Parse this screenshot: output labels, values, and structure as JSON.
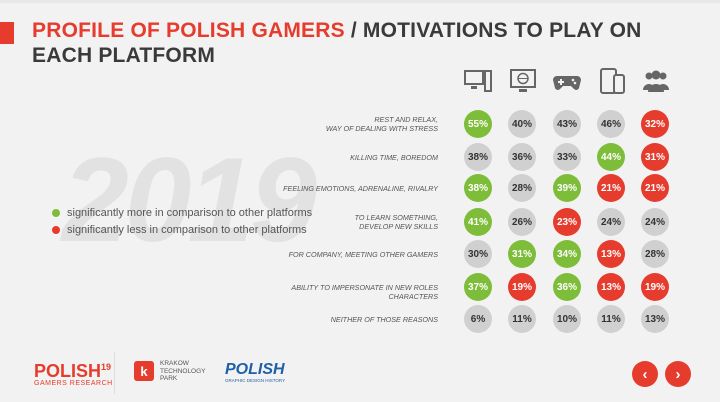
{
  "title": {
    "part1": "PROFILE OF POLISH GAMERS",
    "part2": " / MOTIVATIONS TO PLAY ON EACH PLATFORM"
  },
  "year_watermark": "2019",
  "legend": [
    {
      "text": "significantly more in comparison to other platforms",
      "color": "#7dbd3a"
    },
    {
      "text": "significantly less in comparison to other platforms",
      "color": "#e63c2e"
    }
  ],
  "platform_icons": [
    "desktop-pc-icon",
    "browser-globe-icon",
    "gamepad-console-icon",
    "mobile-tablet-icon",
    "social-group-icon"
  ],
  "chart_data": {
    "type": "table",
    "columns": [
      "desktop-pc",
      "browser",
      "console",
      "mobile",
      "social"
    ],
    "rows": [
      {
        "label": "REST AND RELAX,\nWAY OF DEALING WITH STRESS",
        "values": [
          "55%",
          "40%",
          "43%",
          "46%",
          "32%"
        ],
        "status": [
          "more",
          "none",
          "none",
          "none",
          "less"
        ]
      },
      {
        "label": "KILLING TIME, BOREDOM",
        "values": [
          "38%",
          "36%",
          "33%",
          "44%",
          "31%"
        ],
        "status": [
          "none",
          "none",
          "none",
          "more",
          "less"
        ]
      },
      {
        "label": "FEELING EMOTIONS, ADRENALINE, RIVALRY",
        "values": [
          "38%",
          "28%",
          "39%",
          "21%",
          "21%"
        ],
        "status": [
          "more",
          "none",
          "more",
          "less",
          "less"
        ]
      },
      {
        "label": "TO LEARN SOMETHING,\nDEVELOP NEW SKILLS",
        "values": [
          "41%",
          "26%",
          "23%",
          "24%",
          "24%"
        ],
        "status": [
          "more",
          "none",
          "less",
          "none",
          "none"
        ]
      },
      {
        "label": "FOR COMPANY, MEETING OTHER GAMERS",
        "values": [
          "30%",
          "31%",
          "34%",
          "13%",
          "28%"
        ],
        "status": [
          "none",
          "more",
          "more",
          "less",
          "none"
        ]
      },
      {
        "label": "ABILITY TO IMPERSONATE IN NEW ROLES CHARACTERS",
        "values": [
          "37%",
          "19%",
          "36%",
          "13%",
          "19%"
        ],
        "status": [
          "more",
          "less",
          "more",
          "less",
          "less"
        ]
      },
      {
        "label": "NEITHER OF THOSE REASONS",
        "values": [
          "6%",
          "11%",
          "10%",
          "11%",
          "13%"
        ],
        "status": [
          "none",
          "none",
          "none",
          "none",
          "none"
        ]
      }
    ]
  },
  "footer": {
    "logo1_main": "POLISH",
    "logo1_sup": "19",
    "logo1_sub": "GAMERS RESEARCH",
    "logo2_line1": "KRAKOW",
    "logo2_line2": "TECHNOLOGY",
    "logo2_line3": "PARK",
    "logo3_main": "POLISH",
    "logo3_sub": "GRAPHIC DESIGN HISTORY"
  },
  "nav": {
    "prev_icon": "chevron-left-icon",
    "next_icon": "chevron-right-icon",
    "prev_glyph": "‹",
    "next_glyph": "›"
  },
  "colors": {
    "accent": "#e63c2e",
    "more": "#7dbd3a",
    "less": "#e63c2e",
    "neutral": "#d0d0d0"
  }
}
